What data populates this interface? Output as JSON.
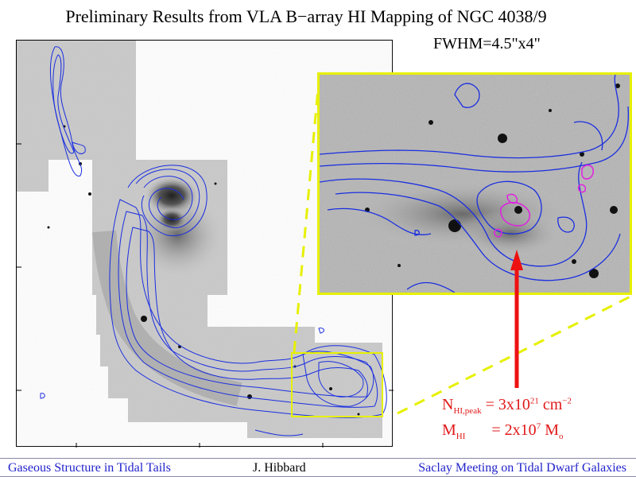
{
  "header": {
    "title": "Preliminary Results from VLA B−array HI Mapping of NGC 4038/9",
    "resolution": "FWHM=4.5\"x4\""
  },
  "annotation": {
    "line1": {
      "symbol": "N",
      "sub": "HI,peak",
      "equals": "= 3x10",
      "exp": "21",
      "unit": " cm",
      "unit_exp": "−2"
    },
    "line2": {
      "symbol": "M",
      "sub": "HI",
      "equals": "= 2x10",
      "exp": "7",
      "unit": " M",
      "unit_sub": "o"
    }
  },
  "colors": {
    "contour_main": "#1a2ee0",
    "contour_peak": "#e020e0",
    "inset_border": "#e6f000",
    "zoom_lines": "#e6f000",
    "arrow": "#ee1111",
    "annotation_text": "#e01818",
    "footer_blue": "#2222cc"
  },
  "footer": {
    "left": "Gaseous Structure in Tidal Tails",
    "center": "J. Hibbard",
    "right": "Saclay Meeting on Tidal Dwarf Galaxies"
  }
}
